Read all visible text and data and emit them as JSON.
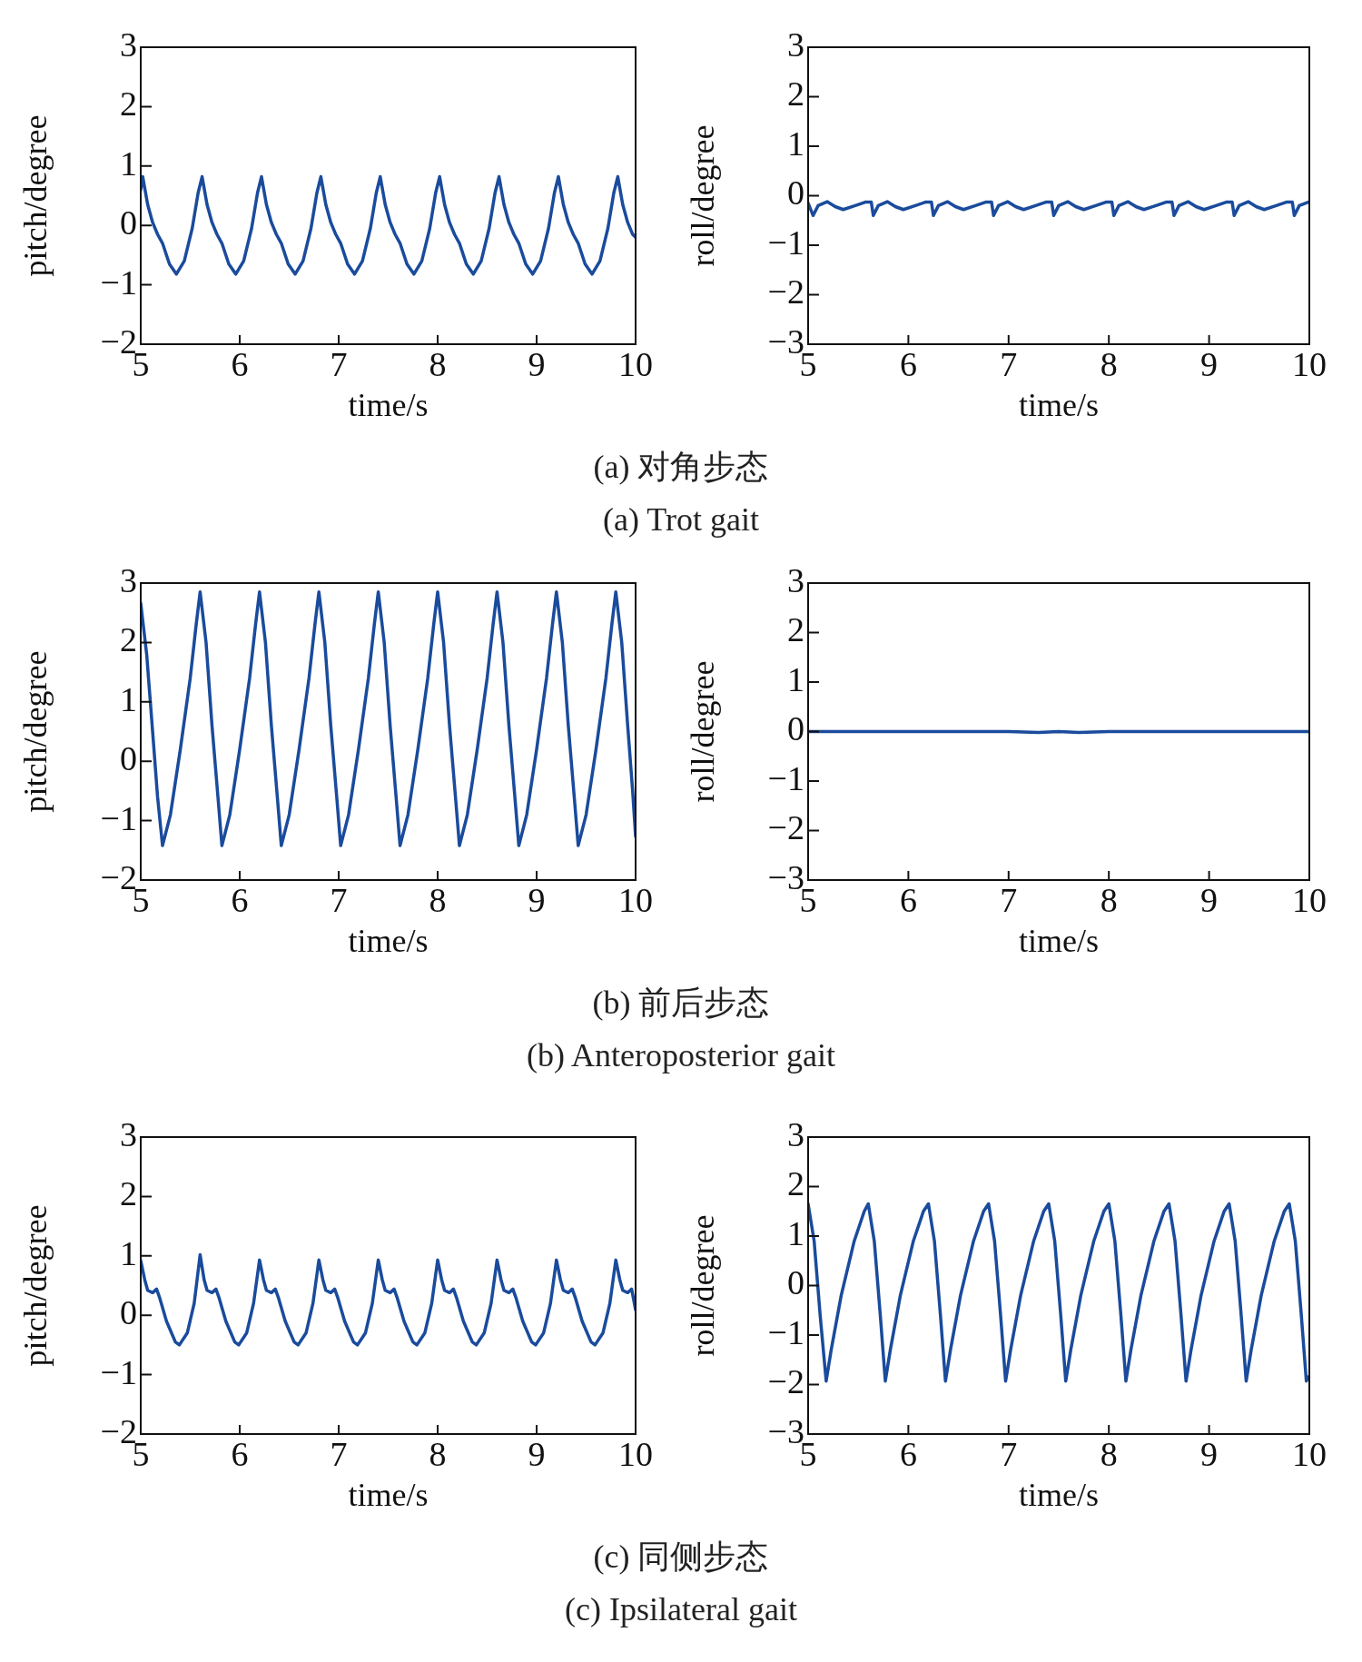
{
  "chart_data": [
    {
      "type": "line",
      "xlabel": "time/s",
      "ylabel": "pitch/degree",
      "color": "#1a4b9c",
      "marker": "none",
      "xlim": [
        5,
        10
      ],
      "ylim": [
        -2,
        3
      ],
      "xticks": [
        5,
        6,
        7,
        8,
        9,
        10
      ],
      "yticks": [
        -2,
        -1,
        0,
        1,
        2,
        3
      ],
      "annotations": [
        "(a) 对角步态",
        "(a) Trot gait"
      ],
      "x": [
        5.0,
        5.02,
        5.07,
        5.12,
        5.17,
        5.22,
        5.29,
        5.36,
        5.44,
        5.52,
        5.58,
        5.62,
        5.67,
        5.72,
        5.77,
        5.82,
        5.89,
        5.96,
        6.04,
        6.12,
        6.18,
        6.22,
        6.27,
        6.32,
        6.37,
        6.42,
        6.49,
        6.56,
        6.64,
        6.72,
        6.78,
        6.82,
        6.87,
        6.92,
        6.97,
        7.02,
        7.09,
        7.16,
        7.24,
        7.32,
        7.38,
        7.42,
        7.47,
        7.52,
        7.57,
        7.62,
        7.69,
        7.76,
        7.84,
        7.92,
        7.98,
        8.02,
        8.07,
        8.12,
        8.17,
        8.22,
        8.29,
        8.36,
        8.44,
        8.52,
        8.58,
        8.62,
        8.67,
        8.72,
        8.77,
        8.82,
        8.89,
        8.96,
        9.04,
        9.12,
        9.18,
        9.22,
        9.27,
        9.32,
        9.37,
        9.42,
        9.49,
        9.56,
        9.64,
        9.72,
        9.78,
        9.82,
        9.87,
        9.92,
        9.97,
        10.0
      ],
      "values": [
        0.6,
        0.82,
        0.35,
        0.05,
        -0.15,
        -0.3,
        -0.65,
        -0.82,
        -0.6,
        -0.05,
        0.55,
        0.82,
        0.35,
        0.05,
        -0.15,
        -0.3,
        -0.65,
        -0.82,
        -0.6,
        -0.05,
        0.55,
        0.82,
        0.35,
        0.05,
        -0.15,
        -0.3,
        -0.65,
        -0.82,
        -0.6,
        -0.05,
        0.55,
        0.82,
        0.35,
        0.05,
        -0.15,
        -0.3,
        -0.65,
        -0.82,
        -0.6,
        -0.05,
        0.55,
        0.82,
        0.35,
        0.05,
        -0.15,
        -0.3,
        -0.65,
        -0.82,
        -0.6,
        -0.05,
        0.55,
        0.82,
        0.35,
        0.05,
        -0.15,
        -0.3,
        -0.65,
        -0.82,
        -0.6,
        -0.05,
        0.55,
        0.82,
        0.35,
        0.05,
        -0.15,
        -0.3,
        -0.65,
        -0.82,
        -0.6,
        -0.05,
        0.55,
        0.82,
        0.35,
        0.05,
        -0.15,
        -0.3,
        -0.65,
        -0.82,
        -0.6,
        -0.05,
        0.55,
        0.82,
        0.35,
        0.05,
        -0.15,
        -0.2
      ]
    },
    {
      "type": "line",
      "xlabel": "time/s",
      "ylabel": "roll/degree",
      "color": "#1a4b9c",
      "marker": "none",
      "xlim": [
        5,
        10
      ],
      "ylim": [
        -3,
        3
      ],
      "xticks": [
        5,
        6,
        7,
        8,
        9,
        10
      ],
      "yticks": [
        -3,
        -2,
        -1,
        0,
        1,
        2,
        3
      ],
      "x": [
        5.0,
        5.05,
        5.1,
        5.19,
        5.27,
        5.35,
        5.47,
        5.57,
        5.63,
        5.65,
        5.7,
        5.79,
        5.87,
        5.95,
        6.07,
        6.17,
        6.23,
        6.25,
        6.3,
        6.39,
        6.47,
        6.55,
        6.67,
        6.77,
        6.83,
        6.85,
        6.9,
        6.99,
        7.07,
        7.15,
        7.27,
        7.37,
        7.43,
        7.45,
        7.5,
        7.59,
        7.67,
        7.75,
        7.87,
        7.97,
        8.03,
        8.05,
        8.1,
        8.19,
        8.27,
        8.35,
        8.47,
        8.57,
        8.63,
        8.65,
        8.7,
        8.79,
        8.87,
        8.95,
        9.07,
        9.17,
        9.23,
        9.25,
        9.3,
        9.39,
        9.47,
        9.55,
        9.67,
        9.77,
        9.83,
        9.85,
        9.9,
        10.0
      ],
      "values": [
        -0.15,
        -0.4,
        -0.2,
        -0.12,
        -0.22,
        -0.28,
        -0.2,
        -0.13,
        -0.13,
        -0.4,
        -0.2,
        -0.12,
        -0.22,
        -0.28,
        -0.2,
        -0.13,
        -0.13,
        -0.4,
        -0.2,
        -0.12,
        -0.22,
        -0.28,
        -0.2,
        -0.13,
        -0.13,
        -0.4,
        -0.2,
        -0.12,
        -0.22,
        -0.28,
        -0.2,
        -0.13,
        -0.13,
        -0.4,
        -0.2,
        -0.12,
        -0.22,
        -0.28,
        -0.2,
        -0.13,
        -0.13,
        -0.4,
        -0.2,
        -0.12,
        -0.22,
        -0.28,
        -0.2,
        -0.13,
        -0.13,
        -0.4,
        -0.2,
        -0.12,
        -0.22,
        -0.28,
        -0.2,
        -0.13,
        -0.13,
        -0.4,
        -0.2,
        -0.12,
        -0.22,
        -0.28,
        -0.2,
        -0.13,
        -0.13,
        -0.4,
        -0.2,
        -0.12
      ]
    },
    {
      "type": "line",
      "xlabel": "time/s",
      "ylabel": "pitch/degree",
      "color": "#1a4b9c",
      "marker": "none",
      "xlim": [
        5,
        10
      ],
      "ylim": [
        -2,
        3
      ],
      "xticks": [
        5,
        6,
        7,
        8,
        9,
        10
      ],
      "yticks": [
        -2,
        -1,
        0,
        1,
        2,
        3
      ],
      "annotations": [
        "(b) 前后步态",
        "(b) Anteroposterior gait"
      ],
      "x": [
        5.0,
        5.06,
        5.12,
        5.17,
        5.22,
        5.3,
        5.4,
        5.5,
        5.56,
        5.6,
        5.66,
        5.72,
        5.78,
        5.82,
        5.9,
        6.0,
        6.1,
        6.16,
        6.2,
        6.26,
        6.32,
        6.38,
        6.42,
        6.5,
        6.6,
        6.7,
        6.76,
        6.8,
        6.86,
        6.92,
        6.98,
        7.02,
        7.1,
        7.2,
        7.3,
        7.36,
        7.4,
        7.46,
        7.52,
        7.58,
        7.62,
        7.7,
        7.8,
        7.9,
        7.96,
        8.0,
        8.06,
        8.12,
        8.18,
        8.22,
        8.3,
        8.4,
        8.5,
        8.56,
        8.6,
        8.66,
        8.72,
        8.78,
        8.82,
        8.9,
        9.0,
        9.1,
        9.16,
        9.2,
        9.26,
        9.32,
        9.38,
        9.42,
        9.5,
        9.6,
        9.7,
        9.76,
        9.8,
        9.86,
        9.92,
        9.97,
        10.0
      ],
      "values": [
        2.66,
        1.8,
        0.5,
        -0.6,
        -1.42,
        -0.9,
        0.2,
        1.4,
        2.3,
        2.85,
        2.0,
        0.6,
        -0.6,
        -1.42,
        -0.9,
        0.2,
        1.4,
        2.3,
        2.85,
        2.0,
        0.6,
        -0.6,
        -1.42,
        -0.9,
        0.2,
        1.4,
        2.3,
        2.85,
        2.0,
        0.6,
        -0.6,
        -1.42,
        -0.9,
        0.2,
        1.4,
        2.3,
        2.85,
        2.0,
        0.6,
        -0.6,
        -1.42,
        -0.9,
        0.2,
        1.4,
        2.3,
        2.85,
        2.0,
        0.6,
        -0.6,
        -1.42,
        -0.9,
        0.2,
        1.4,
        2.3,
        2.85,
        2.0,
        0.6,
        -0.6,
        -1.42,
        -0.9,
        0.2,
        1.4,
        2.3,
        2.85,
        2.0,
        0.6,
        -0.6,
        -1.42,
        -0.9,
        0.2,
        1.4,
        2.3,
        2.85,
        2.0,
        0.6,
        -0.5,
        -1.27
      ]
    },
    {
      "type": "line",
      "xlabel": "time/s",
      "ylabel": "roll/degree",
      "color": "#1a4b9c",
      "marker": "none",
      "xlim": [
        5,
        10
      ],
      "ylim": [
        -3,
        3
      ],
      "xticks": [
        5,
        6,
        7,
        8,
        9,
        10
      ],
      "yticks": [
        -3,
        -2,
        -1,
        0,
        1,
        2,
        3
      ],
      "x": [
        5,
        6,
        7,
        7.3,
        7.5,
        7.7,
        8,
        9,
        10
      ],
      "values": [
        0,
        0,
        0,
        -0.02,
        0,
        -0.02,
        0,
        0,
        0
      ]
    },
    {
      "type": "line",
      "xlabel": "time/s",
      "ylabel": "pitch/degree",
      "color": "#1a4b9c",
      "marker": "none",
      "xlim": [
        5,
        10
      ],
      "ylim": [
        -2,
        3
      ],
      "xticks": [
        5,
        6,
        7,
        8,
        9,
        10
      ],
      "yticks": [
        -2,
        -1,
        0,
        1,
        2,
        3
      ],
      "annotations": [
        "(c) 同侧步态",
        "(c) Ipsilateral gait"
      ],
      "x": [
        5.0,
        5.04,
        5.07,
        5.12,
        5.16,
        5.19,
        5.26,
        5.35,
        5.39,
        5.47,
        5.54,
        5.6,
        5.64,
        5.67,
        5.72,
        5.76,
        5.79,
        5.86,
        5.95,
        5.99,
        6.07,
        6.14,
        6.2,
        6.24,
        6.27,
        6.32,
        6.36,
        6.39,
        6.46,
        6.55,
        6.59,
        6.67,
        6.74,
        6.8,
        6.84,
        6.87,
        6.92,
        6.96,
        6.99,
        7.06,
        7.15,
        7.19,
        7.27,
        7.34,
        7.4,
        7.44,
        7.47,
        7.52,
        7.56,
        7.59,
        7.66,
        7.75,
        7.79,
        7.87,
        7.94,
        8.0,
        8.04,
        8.07,
        8.12,
        8.16,
        8.19,
        8.26,
        8.35,
        8.39,
        8.47,
        8.54,
        8.6,
        8.64,
        8.67,
        8.72,
        8.76,
        8.79,
        8.86,
        8.95,
        8.99,
        9.07,
        9.14,
        9.2,
        9.24,
        9.27,
        9.32,
        9.36,
        9.39,
        9.46,
        9.55,
        9.59,
        9.67,
        9.74,
        9.8,
        9.84,
        9.87,
        9.92,
        9.96,
        10.0
      ],
      "values": [
        0.92,
        0.6,
        0.42,
        0.38,
        0.44,
        0.3,
        -0.1,
        -0.45,
        -0.5,
        -0.3,
        0.2,
        1.02,
        0.6,
        0.42,
        0.38,
        0.44,
        0.3,
        -0.1,
        -0.45,
        -0.5,
        -0.3,
        0.2,
        0.93,
        0.6,
        0.42,
        0.38,
        0.44,
        0.3,
        -0.1,
        -0.45,
        -0.5,
        -0.3,
        0.2,
        0.93,
        0.6,
        0.42,
        0.38,
        0.44,
        0.3,
        -0.1,
        -0.45,
        -0.5,
        -0.3,
        0.2,
        0.93,
        0.6,
        0.42,
        0.38,
        0.44,
        0.3,
        -0.1,
        -0.45,
        -0.5,
        -0.3,
        0.2,
        0.93,
        0.6,
        0.42,
        0.38,
        0.44,
        0.3,
        -0.1,
        -0.45,
        -0.5,
        -0.3,
        0.2,
        0.93,
        0.6,
        0.42,
        0.38,
        0.44,
        0.3,
        -0.1,
        -0.45,
        -0.5,
        -0.3,
        0.2,
        0.93,
        0.6,
        0.42,
        0.38,
        0.44,
        0.3,
        -0.1,
        -0.45,
        -0.5,
        -0.3,
        0.2,
        0.93,
        0.6,
        0.42,
        0.38,
        0.44,
        0.09
      ]
    },
    {
      "type": "line",
      "xlabel": "time/s",
      "ylabel": "roll/degree",
      "color": "#1a4b9c",
      "marker": "none",
      "xlim": [
        5,
        10
      ],
      "ylim": [
        -3,
        3
      ],
      "xticks": [
        5,
        6,
        7,
        8,
        9,
        10
      ],
      "yticks": [
        -3,
        -2,
        -1,
        0,
        1,
        2,
        3
      ],
      "x": [
        5.0,
        5.06,
        5.12,
        5.18,
        5.23,
        5.33,
        5.46,
        5.56,
        5.6,
        5.66,
        5.72,
        5.77,
        5.82,
        5.92,
        6.05,
        6.15,
        6.2,
        6.26,
        6.32,
        6.37,
        6.42,
        6.52,
        6.65,
        6.75,
        6.8,
        6.86,
        6.92,
        6.97,
        7.02,
        7.12,
        7.25,
        7.35,
        7.4,
        7.46,
        7.52,
        7.57,
        7.62,
        7.72,
        7.85,
        7.95,
        8.0,
        8.06,
        8.12,
        8.17,
        8.22,
        8.32,
        8.45,
        8.55,
        8.6,
        8.66,
        8.72,
        8.77,
        8.82,
        8.92,
        9.05,
        9.15,
        9.2,
        9.26,
        9.32,
        9.37,
        9.42,
        9.52,
        9.65,
        9.75,
        9.8,
        9.86,
        9.92,
        9.97,
        10.0
      ],
      "values": [
        1.65,
        0.9,
        -0.6,
        -1.93,
        -1.3,
        -0.2,
        0.9,
        1.5,
        1.65,
        0.9,
        -0.6,
        -1.93,
        -1.3,
        -0.2,
        0.9,
        1.5,
        1.65,
        0.9,
        -0.6,
        -1.93,
        -1.3,
        -0.2,
        0.9,
        1.5,
        1.65,
        0.9,
        -0.6,
        -1.93,
        -1.3,
        -0.2,
        0.9,
        1.5,
        1.65,
        0.9,
        -0.6,
        -1.93,
        -1.3,
        -0.2,
        0.9,
        1.5,
        1.65,
        0.9,
        -0.6,
        -1.93,
        -1.3,
        -0.2,
        0.9,
        1.5,
        1.65,
        0.9,
        -0.6,
        -1.93,
        -1.3,
        -0.2,
        0.9,
        1.5,
        1.65,
        0.9,
        -0.6,
        -1.93,
        -1.3,
        -0.2,
        0.9,
        1.5,
        1.65,
        0.9,
        -0.6,
        -1.93,
        -1.83
      ]
    }
  ]
}
